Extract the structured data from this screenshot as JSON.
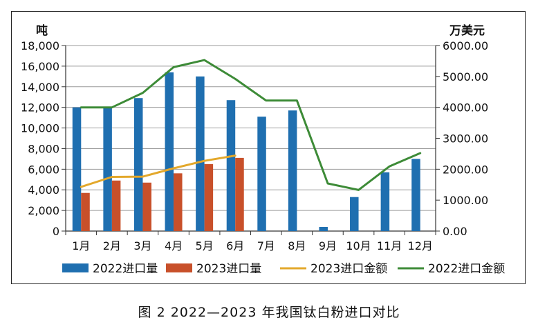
{
  "caption": "图 2  2022—2023 年我国钛白粉进口对比",
  "chart_data": {
    "type": "bar",
    "categories": [
      "1月",
      "2月",
      "3月",
      "4月",
      "5月",
      "6月",
      "7月",
      "8月",
      "9月",
      "10月",
      "11月",
      "12月"
    ],
    "y_left_label": "吨",
    "y_right_label": "万美元",
    "y_left_range": [
      0,
      18000
    ],
    "y_left_ticks": [
      "0",
      "2,000",
      "4,000",
      "6,000",
      "8,000",
      "10,000",
      "12,000",
      "14,000",
      "16,000",
      "18,000"
    ],
    "y_right_range": [
      0,
      6000
    ],
    "y_right_ticks": [
      "0.00",
      "1000.00",
      "2000.00",
      "3000.00",
      "4000.00",
      "5000.00",
      "6000.00"
    ],
    "grid": true,
    "legend_position": "bottom",
    "series": [
      {
        "name": "2022进口量",
        "kind": "bar",
        "axis": "left",
        "color": "#1f6fb0",
        "values": [
          12000,
          12000,
          12900,
          15400,
          15000,
          12700,
          11100,
          11700,
          400,
          3300,
          5700,
          7000
        ]
      },
      {
        "name": "2023进口量",
        "kind": "bar",
        "axis": "left",
        "color": "#c8502a",
        "values": [
          3700,
          4900,
          4700,
          5600,
          6500,
          7100,
          null,
          null,
          null,
          null,
          null,
          null
        ]
      },
      {
        "name": "2023进口金额",
        "kind": "line",
        "axis": "right",
        "color": "#e3a82b",
        "values": [
          1430,
          1750,
          1760,
          2030,
          2270,
          2440,
          null,
          null,
          null,
          null,
          null,
          null
        ]
      },
      {
        "name": "2022进口金额",
        "kind": "line",
        "axis": "right",
        "color": "#3d8b37",
        "values": [
          4000,
          4000,
          4470,
          5300,
          5530,
          4920,
          4220,
          4220,
          1540,
          1330,
          2090,
          2520
        ]
      }
    ],
    "legend_order": [
      "2022进口量",
      "2023进口量",
      "2023进口金额",
      "2022进口金额"
    ]
  }
}
